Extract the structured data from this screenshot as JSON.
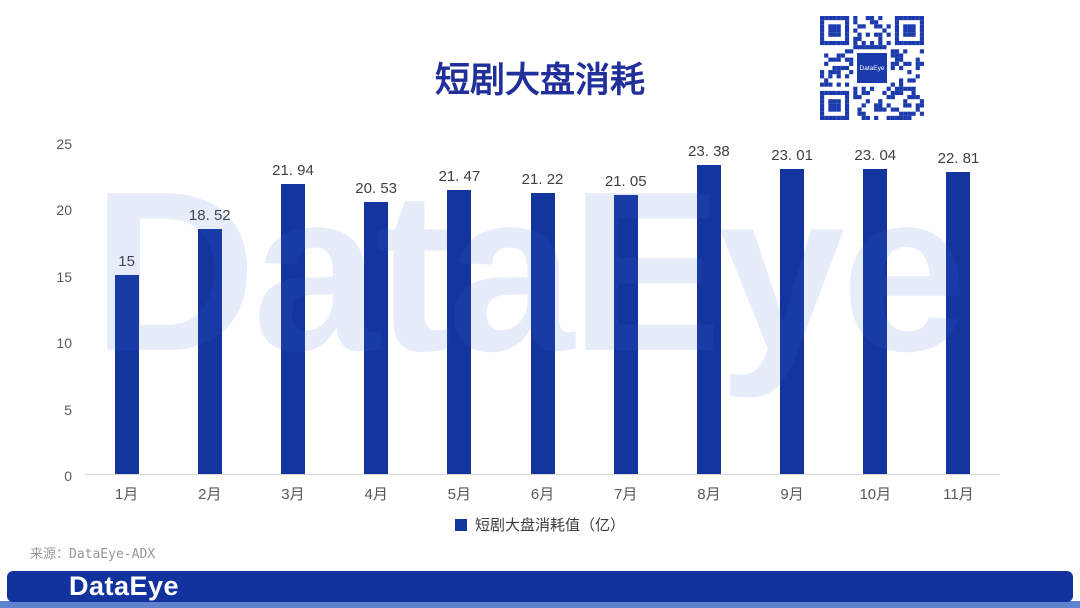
{
  "title": "短剧大盘消耗",
  "watermark": {
    "text": "DataEye"
  },
  "qr": {
    "center_label": "DataEye"
  },
  "legend": {
    "label": "短剧大盘消耗值（亿）"
  },
  "source": "来源：DataEye-ADX",
  "footer": {
    "logo": "DataEye"
  },
  "colors": {
    "bar": "#14349E",
    "title": "#202F9A",
    "qr": "#1B3AAB",
    "footer_bar": "#12339E",
    "footer_strip": "#5F82CE",
    "watermark_ink": "#3A6CD8",
    "axis_text": "#595959",
    "value_text": "#404040"
  },
  "chart_data": {
    "type": "bar",
    "title": "短剧大盘消耗",
    "categories": [
      "1月",
      "2月",
      "3月",
      "4月",
      "5月",
      "6月",
      "7月",
      "8月",
      "9月",
      "10月",
      "11月"
    ],
    "values": [
      15,
      18.52,
      21.94,
      20.53,
      21.47,
      21.22,
      21.05,
      23.38,
      23.01,
      23.04,
      22.81
    ],
    "value_labels": [
      "15",
      "18. 52",
      "21. 94",
      "20. 53",
      "21. 47",
      "21. 22",
      "21. 05",
      "23. 38",
      "23. 01",
      "23. 04",
      "22. 81"
    ],
    "series_name": "短剧大盘消耗值（亿）",
    "xlabel": "",
    "ylabel": "",
    "ylim": [
      0,
      25
    ],
    "yticks": [
      0,
      5,
      10,
      15,
      20,
      25
    ],
    "grid": false,
    "legend_position": "bottom"
  }
}
